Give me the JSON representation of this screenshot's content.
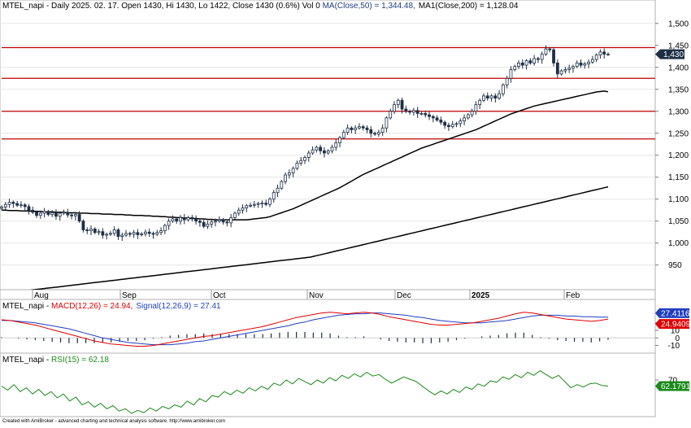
{
  "price_header": {
    "prefix": "MTEL_napi - Daily 2025. 02. 17. Open 1430, Hi 1430, Lo 1422, Close 1430 (0.6%) Vol 0 ",
    "ma50": "MA(Close,50) = 1,344.48,",
    "ma200": "MA1(Close,200) = 1,128.04"
  },
  "macd_header": {
    "prefix": "MTEL_napi - ",
    "macd": "MACD(12,26) = 24.94,",
    "signal": "Signal(12,26,9) = 27.41"
  },
  "rsi_header": {
    "prefix": "MTEL_napi - ",
    "rsi": "RSI(15) = 62.18"
  },
  "footer": "Created with AmiBroker - advanced charting and technical analysis software. http://www.amibroker.com",
  "colors": {
    "up_candle": "#ffffff",
    "down_candle": "#1e2f45",
    "support_line": "#c00000",
    "macd": "#e00000",
    "signal": "#1f3fbf",
    "rsi": "#1a8a1a",
    "badge": "#1e2f45"
  },
  "chart_data": [
    {
      "type": "candlestick",
      "panel": "price",
      "y_range": [
        905,
        1520
      ],
      "y_ticks": [
        950,
        1000,
        1050,
        1100,
        1150,
        1200,
        1250,
        1300,
        1350,
        1400,
        1450,
        1500
      ],
      "y_tick_labels": [
        "950",
        "1,000",
        "1,050",
        "1,100",
        "1,150",
        "1,200",
        "1,250",
        "1,300",
        "1,350",
        "1,400",
        "1,450",
        "1,500"
      ],
      "x_labels": [
        "Aug",
        "Sep",
        "Oct",
        "Nov",
        "Dec",
        "2025",
        "Feb"
      ],
      "horizontal_lines": [
        1445,
        1375,
        1300,
        1237
      ],
      "last_price_label": "1,430",
      "close": [
        1082,
        1088,
        1093,
        1090,
        1086,
        1087,
        1083,
        1075,
        1070,
        1063,
        1068,
        1072,
        1065,
        1069,
        1061,
        1068,
        1070,
        1064,
        1062,
        1065,
        1050,
        1030,
        1028,
        1032,
        1024,
        1026,
        1018,
        1020,
        1022,
        1030,
        1015,
        1018,
        1022,
        1020,
        1024,
        1019,
        1021,
        1025,
        1022,
        1020,
        1024,
        1028,
        1040,
        1050,
        1055,
        1050,
        1058,
        1053,
        1058,
        1055,
        1050,
        1047,
        1038,
        1043,
        1048,
        1050,
        1053,
        1048,
        1046,
        1058,
        1068,
        1075,
        1080,
        1085,
        1086,
        1088,
        1090,
        1091,
        1088,
        1100,
        1115,
        1125,
        1140,
        1155,
        1160,
        1170,
        1182,
        1188,
        1195,
        1205,
        1212,
        1218,
        1210,
        1205,
        1210,
        1218,
        1228,
        1240,
        1252,
        1262,
        1258,
        1262,
        1265,
        1262,
        1258,
        1250,
        1248,
        1252,
        1262,
        1285,
        1300,
        1315,
        1325,
        1305,
        1300,
        1298,
        1302,
        1295,
        1295,
        1292,
        1288,
        1285,
        1280,
        1275,
        1268,
        1265,
        1270,
        1272,
        1278,
        1285,
        1292,
        1300,
        1315,
        1325,
        1335,
        1330,
        1335,
        1330,
        1340,
        1360,
        1375,
        1395,
        1402,
        1410,
        1405,
        1415,
        1410,
        1420,
        1418,
        1430,
        1442,
        1440,
        1410,
        1385,
        1392,
        1395,
        1398,
        1402,
        1410,
        1405,
        1408,
        1412,
        1418,
        1428,
        1435,
        1430,
        1430
      ],
      "ma50": [
        1075,
        1075,
        1074,
        1074,
        1074,
        1073,
        1073,
        1073,
        1072,
        1072,
        1072,
        1071,
        1071,
        1071,
        1070,
        1070,
        1070,
        1069,
        1069,
        1069,
        1068,
        1068,
        1068,
        1067,
        1067,
        1067,
        1066,
        1066,
        1066,
        1065,
        1065,
        1065,
        1064,
        1064,
        1063,
        1063,
        1063,
        1062,
        1062,
        1061,
        1061,
        1060,
        1060,
        1059,
        1059,
        1058,
        1058,
        1057,
        1057,
        1056,
        1056,
        1055,
        1055,
        1054,
        1054,
        1053,
        1053,
        1053,
        1053,
        1053,
        1053,
        1053,
        1053,
        1053,
        1054,
        1055,
        1056,
        1057,
        1058,
        1060,
        1063,
        1066,
        1069,
        1072,
        1075,
        1078,
        1082,
        1086,
        1090,
        1094,
        1098,
        1102,
        1106,
        1110,
        1114,
        1118,
        1122,
        1126,
        1131,
        1136,
        1141,
        1146,
        1151,
        1156,
        1160,
        1164,
        1168,
        1172,
        1176,
        1180,
        1184,
        1188,
        1192,
        1196,
        1200,
        1204,
        1208,
        1212,
        1216,
        1219,
        1222,
        1225,
        1228,
        1231,
        1234,
        1237,
        1240,
        1243,
        1246,
        1249,
        1252,
        1255,
        1258,
        1262,
        1266,
        1270,
        1274,
        1278,
        1282,
        1286,
        1290,
        1294,
        1297,
        1300,
        1303,
        1306,
        1309,
        1312,
        1314,
        1316,
        1318,
        1320,
        1322,
        1324,
        1326,
        1328,
        1330,
        1332,
        1334,
        1336,
        1338,
        1340,
        1342,
        1344,
        1345,
        1346,
        1344.48
      ],
      "ma200": [
        885,
        886,
        887,
        888,
        889,
        890,
        891,
        892,
        893,
        894,
        895,
        896,
        897,
        898,
        899,
        900,
        901,
        902,
        903,
        904,
        905,
        906,
        907,
        908,
        909,
        910,
        911,
        912,
        913,
        914,
        915,
        916,
        917,
        918,
        919,
        920,
        921,
        922,
        923,
        924,
        925,
        926,
        927,
        928,
        929,
        930,
        931,
        932,
        933,
        934,
        935,
        936,
        937,
        938,
        939,
        940,
        941,
        942,
        943,
        944,
        945,
        946,
        947,
        948,
        949,
        950,
        951,
        952,
        953,
        954,
        955,
        956,
        957,
        958,
        959,
        960,
        961,
        962,
        963,
        964,
        965,
        966,
        967,
        968,
        970,
        972,
        974,
        976,
        978,
        980,
        982,
        984,
        986,
        988,
        990,
        992,
        994,
        996,
        998,
        1000,
        1002,
        1004,
        1006,
        1008,
        1010,
        1012,
        1014,
        1016,
        1018,
        1020,
        1022,
        1024,
        1026,
        1028,
        1030,
        1032,
        1034,
        1036,
        1038,
        1040,
        1042,
        1044,
        1046,
        1048,
        1050,
        1052,
        1054,
        1056,
        1058,
        1060,
        1062,
        1064,
        1066,
        1068,
        1070,
        1072,
        1074,
        1076,
        1078,
        1080,
        1082,
        1084,
        1086,
        1088,
        1090,
        1092,
        1094,
        1096,
        1098,
        1100,
        1102,
        1104,
        1106,
        1108,
        1110,
        1112,
        1114,
        1116,
        1118,
        1120,
        1122,
        1124,
        1126,
        1128.04
      ]
    },
    {
      "type": "line",
      "panel": "macd",
      "y_range": [
        -18,
        38
      ],
      "y_ticks": [
        -10,
        0,
        10,
        20
      ],
      "y_tick_labels": [
        "-10",
        "0",
        "10",
        "20"
      ],
      "value_badges": [
        {
          "label": "27.4116",
          "value": 27.41,
          "color": "#1f3fbf"
        },
        {
          "label": "24.9409",
          "value": 24.94,
          "color": "#e00000"
        }
      ],
      "series": [
        {
          "name": "MACD(12,26)",
          "values": [
            24,
            23,
            21,
            19,
            17,
            14,
            11,
            8,
            5,
            2,
            -1,
            -4,
            -6,
            -8,
            -9,
            -10,
            -11,
            -11,
            -10,
            -8,
            -6,
            -4,
            -2,
            0,
            2,
            3,
            5,
            7,
            9,
            11,
            13,
            15,
            18,
            21,
            24,
            27,
            29,
            31,
            33,
            34,
            33,
            32,
            33,
            34,
            33,
            31,
            28,
            26,
            24,
            22,
            20,
            18,
            17,
            17,
            18,
            19,
            20,
            22,
            24,
            26,
            29,
            32,
            34,
            33,
            31,
            29,
            27,
            25,
            24,
            23,
            22,
            23,
            24.94
          ]
        },
        {
          "name": "Signal(12,26,9)",
          "values": [
            23,
            23,
            22,
            21,
            20,
            18,
            16,
            14,
            12,
            9,
            6,
            3,
            0,
            -2,
            -4,
            -6,
            -7,
            -8,
            -9,
            -9,
            -9,
            -8,
            -7,
            -5,
            -4,
            -2,
            0,
            2,
            4,
            6,
            8,
            10,
            12,
            14,
            16,
            19,
            21,
            24,
            26,
            28,
            30,
            31,
            32,
            32,
            33,
            33,
            32,
            31,
            30,
            28,
            27,
            25,
            23,
            22,
            21,
            20,
            20,
            20,
            21,
            22,
            23,
            25,
            27,
            29,
            30,
            30,
            30,
            29,
            29,
            28,
            28,
            27.5,
            27.41
          ]
        }
      ]
    },
    {
      "type": "line",
      "panel": "rsi",
      "y_range": [
        25,
        92
      ],
      "y_ticks": [
        70
      ],
      "y_tick_labels": [
        "70"
      ],
      "value_badges": [
        {
          "label": "62.1791",
          "value": 62.18,
          "color": "#1a8a1a"
        }
      ],
      "series": [
        {
          "name": "RSI(15)",
          "values": [
            62,
            57,
            64,
            55,
            60,
            52,
            58,
            50,
            55,
            47,
            52,
            43,
            48,
            38,
            42,
            35,
            40,
            33,
            37,
            30,
            33,
            27,
            31,
            28,
            34,
            30,
            36,
            33,
            38,
            35,
            43,
            38,
            46,
            42,
            50,
            48,
            55,
            51,
            57,
            53,
            60,
            56,
            62,
            58,
            66,
            63,
            70,
            65,
            72,
            68,
            64,
            70,
            66,
            73,
            69,
            76,
            72,
            78,
            74,
            80,
            75,
            77,
            71,
            66,
            70,
            74,
            71,
            68,
            62,
            56,
            51,
            56,
            52,
            58,
            54,
            61,
            58,
            65,
            62,
            69,
            67,
            74,
            71,
            77,
            73,
            80,
            76,
            82,
            77,
            72,
            76,
            68,
            60,
            64,
            61,
            65,
            66,
            63,
            62.18
          ]
        }
      ]
    }
  ]
}
